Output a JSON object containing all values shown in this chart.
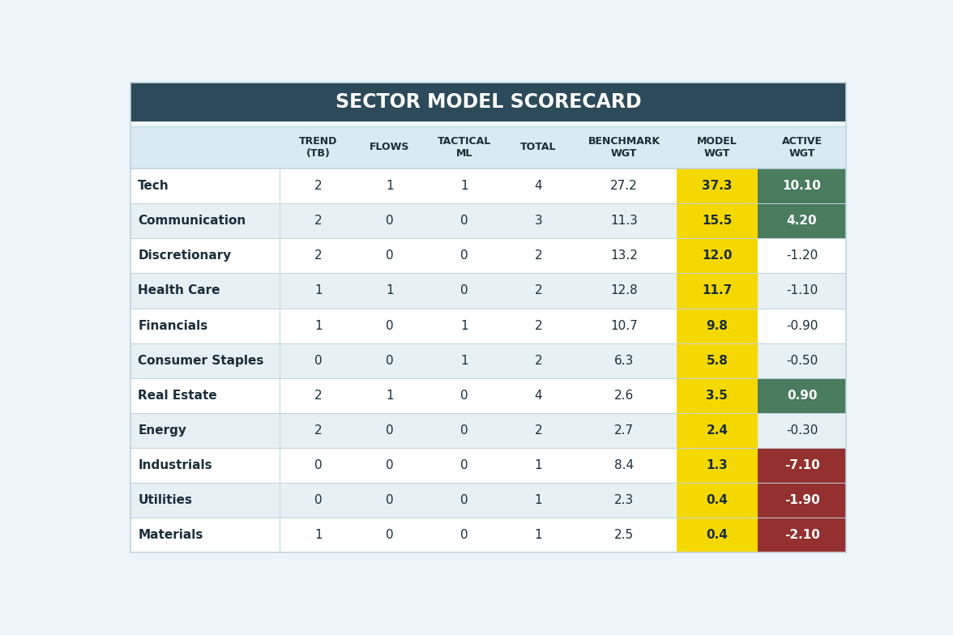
{
  "title": "SECTOR MODEL SCORECARD",
  "title_bg": "#2d4a5a",
  "title_color": "#ffffff",
  "header_bg": "#daeaf2",
  "header_color": "#1a2e3a",
  "columns": [
    "TREND\n(TB)",
    "FLOWS",
    "TACTICAL\nML",
    "TOTAL",
    "BENCHMARK\nWGT",
    "MODEL\nWGT",
    "ACTIVE\nWGT"
  ],
  "sectors": [
    "Tech",
    "Communication",
    "Discretionary",
    "Health Care",
    "Financials",
    "Consumer Staples",
    "Real Estate",
    "Energy",
    "Industrials",
    "Utilities",
    "Materials"
  ],
  "data": [
    [
      2,
      1,
      1,
      4,
      27.2,
      37.3,
      10.1
    ],
    [
      2,
      0,
      0,
      3,
      11.3,
      15.5,
      4.2
    ],
    [
      2,
      0,
      0,
      2,
      13.2,
      12.0,
      -1.2
    ],
    [
      1,
      1,
      0,
      2,
      12.8,
      11.7,
      -1.1
    ],
    [
      1,
      0,
      1,
      2,
      10.7,
      9.8,
      -0.9
    ],
    [
      0,
      0,
      1,
      2,
      6.3,
      5.8,
      -0.5
    ],
    [
      2,
      1,
      0,
      4,
      2.6,
      3.5,
      0.9
    ],
    [
      2,
      0,
      0,
      2,
      2.7,
      2.4,
      -0.3
    ],
    [
      0,
      0,
      0,
      1,
      8.4,
      1.3,
      -7.1
    ],
    [
      0,
      0,
      0,
      1,
      2.3,
      0.4,
      -1.9
    ],
    [
      1,
      0,
      0,
      1,
      2.5,
      0.4,
      -2.1
    ]
  ],
  "active_wgt_colors": [
    {
      "bg": "#4a7c5e",
      "fg": "#ffffff",
      "bold": true
    },
    {
      "bg": "#4a7c5e",
      "fg": "#ffffff",
      "bold": true
    },
    {
      "bg": null,
      "fg": "#1a2e3a",
      "bold": false
    },
    {
      "bg": null,
      "fg": "#1a2e3a",
      "bold": false
    },
    {
      "bg": null,
      "fg": "#1a2e3a",
      "bold": false
    },
    {
      "bg": null,
      "fg": "#1a2e3a",
      "bold": false
    },
    {
      "bg": "#4a7c5e",
      "fg": "#ffffff",
      "bold": true
    },
    {
      "bg": null,
      "fg": "#1a2e3a",
      "bold": false
    },
    {
      "bg": "#943030",
      "fg": "#ffffff",
      "bold": true
    },
    {
      "bg": "#943030",
      "fg": "#ffffff",
      "bold": true
    },
    {
      "bg": "#943030",
      "fg": "#ffffff",
      "bold": true
    }
  ],
  "row_bg_odd": "#ffffff",
  "row_bg_even": "#e6f0f5",
  "model_wgt_bg": "#f5d800",
  "model_wgt_color": "#1a2e3a",
  "border_color": "#c0d4de",
  "figure_bg": "#edf5fa",
  "title_fontsize": 17,
  "header_fontsize": 9,
  "cell_fontsize": 11,
  "sector_fontsize": 11
}
